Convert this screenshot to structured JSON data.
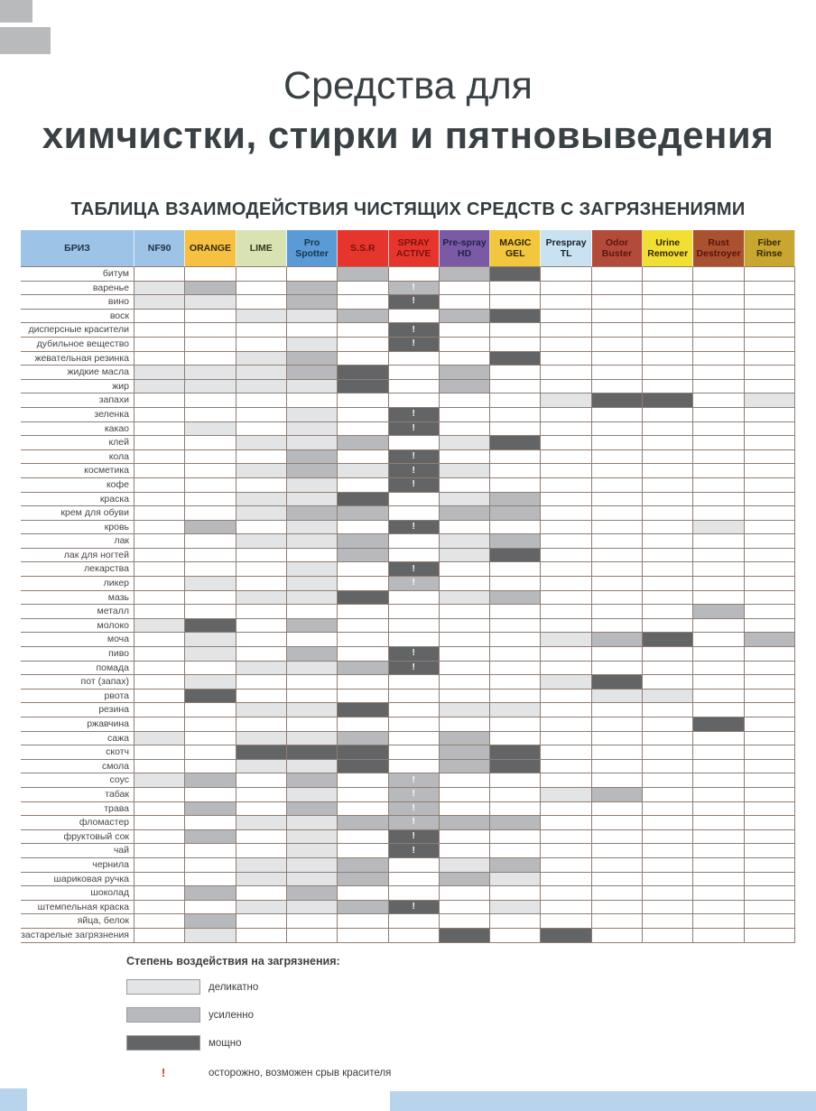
{
  "title": {
    "line1": "Средства для",
    "line2": "химчистки, стирки и пятновыведения",
    "subtitle": "ТАБЛИЦА ВЗАИМОДЕЙСТВИЯ ЧИСТЯЩИХ СРЕДСТВ С ЗАГРЯЗНЕНИЯМИ"
  },
  "chart_data": {
    "type": "heatmap",
    "title": "ТАБЛИЦА ВЗАИМОДЕЙСТВИЯ ЧИСТЯЩИХ СРЕДСТВ С ЗАГРЯЗНЕНИЯМИ",
    "brand": {
      "label": "БРИЗ",
      "bg": "#9dc3e6",
      "fg": "#1d3349"
    },
    "value_scale": {
      "0": "",
      "1": "деликатно",
      "2": "усиленно",
      "3": "мощно",
      "!": "осторожно, возможен срыв красителя"
    },
    "intensity_colors": {
      "0": "#ffffff",
      "1": "#e3e4e6",
      "2": "#b8b9bc",
      "3": "#636466"
    },
    "columns": [
      {
        "label": "NF90",
        "bg": "#9dc3e6",
        "fg": "#1d3349"
      },
      {
        "label": "ORANGE",
        "bg": "#f6c142",
        "fg": "#33280e"
      },
      {
        "label": "LIME",
        "bg": "#d9e2b3",
        "fg": "#2e3a1c"
      },
      {
        "label": "Pro Spotter",
        "bg": "#5b9bd5",
        "fg": "#16344f"
      },
      {
        "label": "S.S.R",
        "bg": "#e6352c",
        "fg": "#7c120c"
      },
      {
        "label": "SPRAY ACTIVE",
        "bg": "#e6352c",
        "fg": "#7c120c"
      },
      {
        "label": "Pre-spray HD",
        "bg": "#7a5aa5",
        "fg": "#26204f"
      },
      {
        "label": "MAGIC GEL",
        "bg": "#f2c63d",
        "fg": "#2f2508"
      },
      {
        "label": "Prespray TL",
        "bg": "#c9e2f2",
        "fg": "#17202a"
      },
      {
        "label": "Odor Buster",
        "bg": "#b34b3b",
        "fg": "#5e130d"
      },
      {
        "label": "Urine Remover",
        "bg": "#f2df33",
        "fg": "#33280a"
      },
      {
        "label": "Rust Destroyer",
        "bg": "#aa5130",
        "fg": "#591309"
      },
      {
        "label": "Fiber Rinse",
        "bg": "#c8a62f",
        "fg": "#332906"
      }
    ],
    "rows": [
      "битум",
      "варенье",
      "вино",
      "воск",
      "дисперсные красители",
      "дубильное вещество",
      "жевательная резинка",
      "жидкие масла",
      "жир",
      "запахи",
      "зеленка",
      "какао",
      "клей",
      "кола",
      "косметика",
      "кофе",
      "краска",
      "крем для обуви",
      "кровь",
      "лак",
      "лак для ногтей",
      "лекарства",
      "ликер",
      "мазь",
      "металл",
      "молоко",
      "моча",
      "пиво",
      "помада",
      "пот (запах)",
      "рвота",
      "резина",
      "ржавчина",
      "сажа",
      "скотч",
      "смола",
      "соус",
      "табак",
      "трава",
      "фломастер",
      "фруктовый сок",
      "чай",
      "чернила",
      "шариковая ручка",
      "шоколад",
      "штемпельная краска",
      "яйца, белок",
      "застарелые загрязнения"
    ],
    "matrix": [
      [
        "0",
        "0",
        "0",
        "0",
        "2",
        "0",
        "2",
        "3",
        "0",
        "0",
        "0",
        "0",
        "0"
      ],
      [
        "1",
        "2",
        "0",
        "2",
        "0",
        "2!",
        "0",
        "0",
        "0",
        "0",
        "0",
        "0",
        "0"
      ],
      [
        "1",
        "1",
        "0",
        "2",
        "0",
        "3!",
        "0",
        "0",
        "0",
        "0",
        "0",
        "0",
        "0"
      ],
      [
        "0",
        "0",
        "1",
        "1",
        "2",
        "0",
        "2",
        "3",
        "0",
        "0",
        "0",
        "0",
        "0"
      ],
      [
        "0",
        "0",
        "0",
        "0",
        "0",
        "3!",
        "0",
        "0",
        "0",
        "0",
        "0",
        "0",
        "0"
      ],
      [
        "0",
        "0",
        "0",
        "1",
        "0",
        "3!",
        "0",
        "0",
        "0",
        "0",
        "0",
        "0",
        "0"
      ],
      [
        "0",
        "0",
        "1",
        "2",
        "0",
        "0",
        "0",
        "3",
        "0",
        "0",
        "0",
        "0",
        "0"
      ],
      [
        "1",
        "1",
        "1",
        "2",
        "3",
        "0",
        "2",
        "0",
        "0",
        "0",
        "0",
        "0",
        "0"
      ],
      [
        "1",
        "1",
        "1",
        "1",
        "3",
        "0",
        "2",
        "0",
        "0",
        "0",
        "0",
        "0",
        "0"
      ],
      [
        "0",
        "0",
        "0",
        "0",
        "0",
        "0",
        "0",
        "0",
        "1",
        "3",
        "3",
        "0",
        "1"
      ],
      [
        "0",
        "0",
        "0",
        "1",
        "0",
        "3!",
        "0",
        "0",
        "0",
        "0",
        "0",
        "0",
        "0"
      ],
      [
        "0",
        "1",
        "0",
        "1",
        "0",
        "3!",
        "0",
        "0",
        "0",
        "0",
        "0",
        "0",
        "0"
      ],
      [
        "0",
        "0",
        "1",
        "1",
        "2",
        "0",
        "1",
        "3",
        "0",
        "0",
        "0",
        "0",
        "0"
      ],
      [
        "0",
        "0",
        "0",
        "2",
        "0",
        "3!",
        "0",
        "0",
        "0",
        "0",
        "0",
        "0",
        "0"
      ],
      [
        "0",
        "0",
        "1",
        "2",
        "1",
        "3!",
        "1",
        "0",
        "0",
        "0",
        "0",
        "0",
        "0"
      ],
      [
        "0",
        "0",
        "0",
        "1",
        "0",
        "3!",
        "0",
        "0",
        "0",
        "0",
        "0",
        "0",
        "0"
      ],
      [
        "0",
        "0",
        "1",
        "1",
        "3",
        "0",
        "1",
        "2",
        "0",
        "0",
        "0",
        "0",
        "0"
      ],
      [
        "0",
        "0",
        "1",
        "2",
        "2",
        "0",
        "2",
        "2",
        "0",
        "0",
        "0",
        "0",
        "0"
      ],
      [
        "0",
        "2",
        "0",
        "1",
        "0",
        "3!",
        "0",
        "0",
        "0",
        "0",
        "0",
        "1",
        "0"
      ],
      [
        "0",
        "0",
        "1",
        "1",
        "2",
        "0",
        "1",
        "2",
        "0",
        "0",
        "0",
        "0",
        "0"
      ],
      [
        "0",
        "0",
        "0",
        "0",
        "2",
        "0",
        "1",
        "3",
        "0",
        "0",
        "0",
        "0",
        "0"
      ],
      [
        "0",
        "0",
        "0",
        "1",
        "0",
        "3!",
        "0",
        "0",
        "0",
        "0",
        "0",
        "0",
        "0"
      ],
      [
        "0",
        "1",
        "0",
        "1",
        "0",
        "2!",
        "0",
        "0",
        "0",
        "0",
        "0",
        "0",
        "0"
      ],
      [
        "0",
        "0",
        "1",
        "1",
        "3",
        "0",
        "1",
        "2",
        "0",
        "0",
        "0",
        "0",
        "0"
      ],
      [
        "0",
        "0",
        "0",
        "0",
        "0",
        "0",
        "0",
        "0",
        "0",
        "0",
        "0",
        "2",
        "0"
      ],
      [
        "1",
        "3",
        "0",
        "2",
        "0",
        "0",
        "0",
        "0",
        "0",
        "0",
        "0",
        "0",
        "0"
      ],
      [
        "0",
        "1",
        "0",
        "0",
        "0",
        "0",
        "0",
        "0",
        "1",
        "2",
        "3",
        "0",
        "2"
      ],
      [
        "0",
        "1",
        "0",
        "2",
        "0",
        "3!",
        "0",
        "0",
        "0",
        "0",
        "0",
        "0",
        "0"
      ],
      [
        "0",
        "0",
        "1",
        "1",
        "2",
        "3!",
        "0",
        "0",
        "0",
        "0",
        "0",
        "0",
        "0"
      ],
      [
        "0",
        "1",
        "0",
        "0",
        "0",
        "0",
        "0",
        "0",
        "1",
        "3",
        "0",
        "0",
        "0"
      ],
      [
        "0",
        "3",
        "0",
        "0",
        "0",
        "0",
        "0",
        "0",
        "0",
        "1",
        "1",
        "0",
        "0"
      ],
      [
        "0",
        "0",
        "1",
        "1",
        "3",
        "0",
        "1",
        "1",
        "0",
        "0",
        "0",
        "0",
        "0"
      ],
      [
        "0",
        "0",
        "0",
        "0",
        "0",
        "0",
        "0",
        "0",
        "0",
        "0",
        "0",
        "3",
        "0"
      ],
      [
        "1",
        "0",
        "1",
        "1",
        "2",
        "0",
        "2",
        "0",
        "0",
        "0",
        "0",
        "0",
        "0"
      ],
      [
        "0",
        "0",
        "3",
        "3",
        "3",
        "0",
        "2",
        "3",
        "0",
        "0",
        "0",
        "0",
        "0"
      ],
      [
        "0",
        "0",
        "1",
        "1",
        "3",
        "0",
        "2",
        "3",
        "0",
        "0",
        "0",
        "0",
        "0"
      ],
      [
        "1",
        "2",
        "0",
        "2",
        "0",
        "2!",
        "0",
        "0",
        "0",
        "0",
        "0",
        "0",
        "0"
      ],
      [
        "0",
        "0",
        "0",
        "1",
        "0",
        "2!",
        "0",
        "0",
        "1",
        "2",
        "0",
        "0",
        "0"
      ],
      [
        "0",
        "2",
        "0",
        "2",
        "0",
        "2!",
        "0",
        "0",
        "0",
        "0",
        "0",
        "0",
        "0"
      ],
      [
        "0",
        "0",
        "1",
        "1",
        "2",
        "2!",
        "2",
        "2",
        "0",
        "0",
        "0",
        "0",
        "0"
      ],
      [
        "0",
        "2",
        "0",
        "1",
        "0",
        "3!",
        "0",
        "0",
        "0",
        "0",
        "0",
        "0",
        "0"
      ],
      [
        "0",
        "0",
        "0",
        "1",
        "0",
        "3!",
        "0",
        "0",
        "0",
        "0",
        "0",
        "0",
        "0"
      ],
      [
        "0",
        "0",
        "1",
        "1",
        "2",
        "0",
        "1",
        "2",
        "0",
        "0",
        "0",
        "0",
        "0"
      ],
      [
        "0",
        "0",
        "1",
        "1",
        "2",
        "0",
        "2",
        "1",
        "0",
        "0",
        "0",
        "0",
        "0"
      ],
      [
        "0",
        "2",
        "0",
        "2",
        "0",
        "0",
        "0",
        "0",
        "0",
        "0",
        "0",
        "0",
        "0"
      ],
      [
        "0",
        "0",
        "1",
        "1",
        "2",
        "3!",
        "0",
        "1",
        "0",
        "0",
        "0",
        "0",
        "0"
      ],
      [
        "0",
        "2",
        "0",
        "0",
        "0",
        "0",
        "0",
        "0",
        "0",
        "0",
        "0",
        "0",
        "0"
      ],
      [
        "0",
        "1",
        "0",
        "0",
        "0",
        "0",
        "3",
        "0",
        "3",
        "0",
        "0",
        "0",
        "0"
      ]
    ]
  },
  "legend": {
    "title": "Степень воздействия на загрязнения:",
    "items": [
      {
        "level": 1,
        "label": "деликатно",
        "color": "#e3e4e6"
      },
      {
        "level": 2,
        "label": "усиленно",
        "color": "#b8b9bc"
      },
      {
        "level": 3,
        "label": "мощно",
        "color": "#636466"
      }
    ],
    "warning": {
      "symbol": "!",
      "color": "#cb3a2e",
      "label": "осторожно, возможен срыв красителя"
    }
  }
}
